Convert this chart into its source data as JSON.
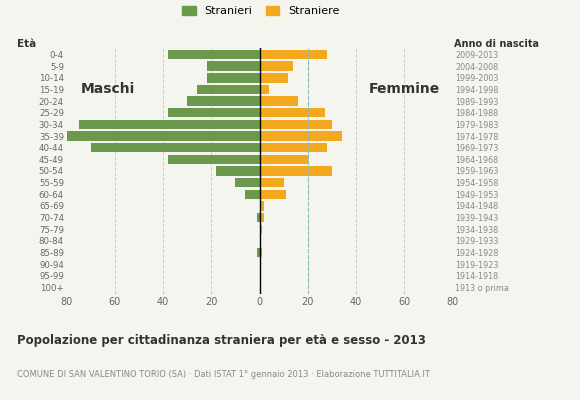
{
  "age_groups": [
    "100+",
    "95-99",
    "90-94",
    "85-89",
    "80-84",
    "75-79",
    "70-74",
    "65-69",
    "60-64",
    "55-59",
    "50-54",
    "45-49",
    "40-44",
    "35-39",
    "30-34",
    "25-29",
    "20-24",
    "15-19",
    "10-14",
    "5-9",
    "0-4"
  ],
  "birth_years": [
    "1913 o prima",
    "1914-1918",
    "1919-1923",
    "1924-1928",
    "1929-1933",
    "1934-1938",
    "1939-1943",
    "1944-1948",
    "1949-1953",
    "1954-1958",
    "1959-1963",
    "1964-1968",
    "1969-1973",
    "1974-1978",
    "1979-1983",
    "1984-1988",
    "1989-1993",
    "1994-1998",
    "1999-2003",
    "2004-2008",
    "2009-2013"
  ],
  "males": [
    0,
    0,
    0,
    1,
    0,
    0,
    1,
    0,
    6,
    10,
    18,
    38,
    70,
    82,
    75,
    38,
    30,
    26,
    22,
    22,
    38
  ],
  "females": [
    0,
    0,
    0,
    1,
    0,
    1,
    2,
    2,
    11,
    10,
    30,
    20,
    28,
    34,
    30,
    27,
    16,
    4,
    12,
    14,
    28
  ],
  "male_color": "#6a994e",
  "female_color": "#f4a81d",
  "bg_color": "#f5f5f0",
  "grid_color": "#cccccc",
  "bar_height": 0.82,
  "xlim": 80,
  "title": "Popolazione per cittadinanza straniera per età e sesso - 2013",
  "subtitle": "COMUNE DI SAN VALENTINO TORIO (SA) · Dati ISTAT 1° gennaio 2013 · Elaborazione TUTTITALIA.IT",
  "legend_stranieri": "Stranieri",
  "legend_straniere": "Straniere",
  "ylabel_eta": "Età",
  "ylabel_anno": "Anno di nascita",
  "label_maschi": "Maschi",
  "label_femmine": "Femmine"
}
